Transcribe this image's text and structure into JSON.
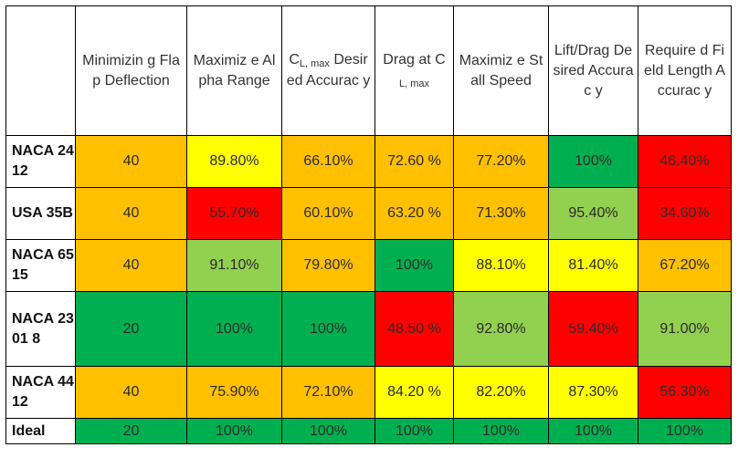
{
  "colors": {
    "dark_green": "#00B050",
    "light_green": "#92D050",
    "yellow": "#FFFF00",
    "orange": "#FFC000",
    "red": "#FF0000",
    "white": "#FFFFFF"
  },
  "table": {
    "corner": "",
    "headers": [
      {
        "pre": "Minimizin g Flap Deflection",
        "sub": "",
        "post": ""
      },
      {
        "pre": "Maximiz e Alpha Range",
        "sub": "",
        "post": ""
      },
      {
        "pre": "C",
        "sub": "L, max",
        "post": " Desired Accurac y"
      },
      {
        "pre": "Drag at C",
        "sub": "L, max",
        "post": ""
      },
      {
        "pre": "Maximiz e Stall Speed",
        "sub": "",
        "post": ""
      },
      {
        "pre": "Lift/Drag Desired Accurac y",
        "sub": "",
        "post": ""
      },
      {
        "pre": "Require d Field Length Accurac y",
        "sub": "",
        "post": ""
      }
    ],
    "rows": [
      {
        "name": "NACA 2412",
        "cells": [
          {
            "value": "40",
            "color": "orange"
          },
          {
            "value": "89.80%",
            "color": "yellow"
          },
          {
            "value": "66.10%",
            "color": "orange"
          },
          {
            "value": "72.60 %",
            "color": "orange"
          },
          {
            "value": "77.20%",
            "color": "orange"
          },
          {
            "value": "100%",
            "color": "dark_green"
          },
          {
            "value": "46.40%",
            "color": "red"
          }
        ]
      },
      {
        "name": "USA 35B",
        "cells": [
          {
            "value": "40",
            "color": "orange"
          },
          {
            "value": "55.70%",
            "color": "red"
          },
          {
            "value": "60.10%",
            "color": "orange"
          },
          {
            "value": "63.20 %",
            "color": "orange"
          },
          {
            "value": "71.30%",
            "color": "orange"
          },
          {
            "value": "95.40%",
            "color": "light_green"
          },
          {
            "value": "34.60%",
            "color": "red"
          }
        ]
      },
      {
        "name": "NACA 6515",
        "cells": [
          {
            "value": "40",
            "color": "orange"
          },
          {
            "value": "91.10%",
            "color": "light_green"
          },
          {
            "value": "79.80%",
            "color": "orange"
          },
          {
            "value": "100%",
            "color": "dark_green"
          },
          {
            "value": "88.10%",
            "color": "yellow"
          },
          {
            "value": "81.40%",
            "color": "yellow"
          },
          {
            "value": "67.20%",
            "color": "orange"
          }
        ]
      },
      {
        "name": "NACA 2301 8",
        "cells": [
          {
            "value": "20",
            "color": "dark_green"
          },
          {
            "value": "100%",
            "color": "dark_green"
          },
          {
            "value": "100%",
            "color": "dark_green"
          },
          {
            "value": "48.50 %",
            "color": "red"
          },
          {
            "value": "92.80%",
            "color": "light_green"
          },
          {
            "value": "59.40%",
            "color": "red"
          },
          {
            "value": "91.00%",
            "color": "light_green"
          }
        ]
      },
      {
        "name": "NACA 4412",
        "cells": [
          {
            "value": "40",
            "color": "orange"
          },
          {
            "value": "75.90%",
            "color": "orange"
          },
          {
            "value": "72.10%",
            "color": "orange"
          },
          {
            "value": "84.20 %",
            "color": "yellow"
          },
          {
            "value": "82.20%",
            "color": "yellow"
          },
          {
            "value": "87.30%",
            "color": "yellow"
          },
          {
            "value": "56.30%",
            "color": "red"
          }
        ]
      },
      {
        "name": "Ideal",
        "cells": [
          {
            "value": "20",
            "color": "dark_green"
          },
          {
            "value": "100%",
            "color": "dark_green"
          },
          {
            "value": "100%",
            "color": "dark_green"
          },
          {
            "value": "100%",
            "color": "dark_green"
          },
          {
            "value": "100%",
            "color": "dark_green"
          },
          {
            "value": "100%",
            "color": "dark_green"
          },
          {
            "value": "100%",
            "color": "dark_green"
          }
        ]
      }
    ]
  }
}
